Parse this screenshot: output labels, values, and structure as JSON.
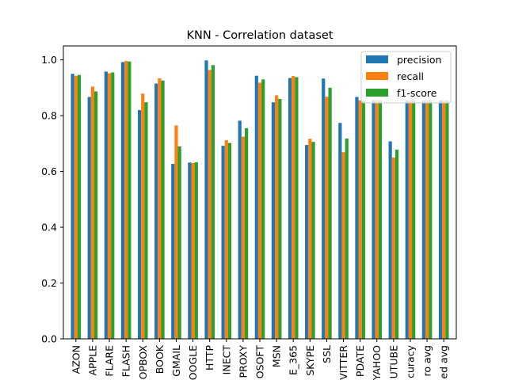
{
  "chart_data": {
    "type": "bar",
    "title": "KNN - Correlation dataset",
    "xlabel": "",
    "ylabel": "",
    "ylim": [
      0,
      1.05
    ],
    "yticks": [
      "0.0",
      "0.2",
      "0.4",
      "0.6",
      "0.8",
      "1.0"
    ],
    "grid": false,
    "legend_position": "top-right",
    "categories": [
      "AZON",
      "APPLE",
      "FLARE",
      "FLASH",
      "OPBOX",
      "BOOK",
      "GMAIL",
      "OOGLE",
      "HTTP",
      "INECT",
      "PROXY",
      "OSOFT",
      "MSN",
      "E_365",
      "SKYPE",
      "SSL",
      "VITTER",
      "PDATE",
      "YAHOO",
      "UTUBE",
      "curacy",
      "ro avg",
      "ed avg"
    ],
    "series": [
      {
        "name": "precision",
        "color": "#1f77b4",
        "values": [
          0.95,
          0.867,
          0.958,
          0.992,
          0.82,
          0.915,
          0.627,
          0.632,
          0.998,
          0.692,
          0.782,
          0.943,
          0.848,
          0.935,
          0.695,
          0.933,
          0.774,
          0.867,
          0.855,
          0.708,
          0.855,
          0.855,
          0.855
        ]
      },
      {
        "name": "recall",
        "color": "#ff7f0e",
        "values": [
          0.943,
          0.904,
          0.952,
          0.996,
          0.879,
          0.934,
          0.765,
          0.63,
          0.964,
          0.712,
          0.725,
          0.918,
          0.873,
          0.942,
          0.717,
          0.868,
          0.669,
          0.855,
          0.855,
          0.65,
          0.855,
          0.855,
          0.855
        ]
      },
      {
        "name": "f1-score",
        "color": "#2ca02c",
        "values": [
          0.946,
          0.887,
          0.955,
          0.994,
          0.848,
          0.926,
          0.69,
          0.633,
          0.981,
          0.702,
          0.755,
          0.93,
          0.86,
          0.938,
          0.706,
          0.9,
          0.718,
          0.855,
          0.855,
          0.678,
          0.855,
          0.855,
          0.855
        ]
      }
    ]
  }
}
